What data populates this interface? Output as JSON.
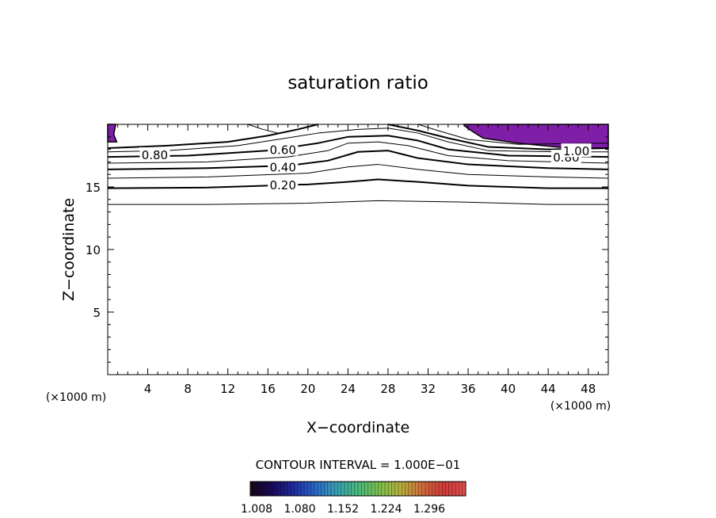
{
  "chart_data": {
    "type": "contour",
    "title": "saturation ratio",
    "xlabel": "X−coordinate",
    "ylabel": "Z−coordinate",
    "x_unit_left": "(×1000 m)",
    "x_unit_right": "(×1000 m)",
    "xlim": [
      0,
      50
    ],
    "ylim": [
      0,
      20
    ],
    "x_ticks": [
      4,
      8,
      12,
      16,
      20,
      24,
      28,
      32,
      36,
      40,
      44,
      48
    ],
    "y_ticks": [
      5,
      10,
      15
    ],
    "contour_interval_label": "CONTOUR INTERVAL = 1.000E−01",
    "contour_labels": [
      {
        "text": "0.20",
        "x": 17.5,
        "y": 15.2
      },
      {
        "text": "0.40",
        "x": 17.5,
        "y": 16.6
      },
      {
        "text": "0.60",
        "x": 17.5,
        "y": 18.0
      },
      {
        "text": "0.80",
        "x": 4.7,
        "y": 17.6
      },
      {
        "text": "0.80",
        "x": 45.8,
        "y": 17.4
      },
      {
        "text": "1.00",
        "x": 46.8,
        "y": 17.9
      }
    ],
    "contours": [
      {
        "level": 0.1,
        "bold": false,
        "points": [
          [
            0,
            13.6
          ],
          [
            10,
            13.6
          ],
          [
            20,
            13.7
          ],
          [
            27,
            13.9
          ],
          [
            35,
            13.8
          ],
          [
            44,
            13.6
          ],
          [
            50,
            13.6
          ]
        ]
      },
      {
        "level": 0.2,
        "bold": true,
        "points": [
          [
            0,
            14.9
          ],
          [
            10,
            14.95
          ],
          [
            20,
            15.2
          ],
          [
            24,
            15.4
          ],
          [
            27,
            15.6
          ],
          [
            31,
            15.4
          ],
          [
            36,
            15.1
          ],
          [
            44,
            14.9
          ],
          [
            50,
            14.9
          ]
        ]
      },
      {
        "level": 0.3,
        "bold": false,
        "points": [
          [
            0,
            15.7
          ],
          [
            10,
            15.8
          ],
          [
            20,
            16.1
          ],
          [
            24,
            16.6
          ],
          [
            27,
            16.8
          ],
          [
            31,
            16.4
          ],
          [
            36,
            16.0
          ],
          [
            44,
            15.8
          ],
          [
            50,
            15.7
          ]
        ]
      },
      {
        "level": 0.4,
        "bold": true,
        "points": [
          [
            0,
            16.4
          ],
          [
            10,
            16.5
          ],
          [
            18,
            16.7
          ],
          [
            22,
            17.1
          ],
          [
            25,
            17.8
          ],
          [
            28,
            17.9
          ],
          [
            31,
            17.3
          ],
          [
            36,
            16.8
          ],
          [
            44,
            16.5
          ],
          [
            50,
            16.4
          ]
        ]
      },
      {
        "level": 0.5,
        "bold": false,
        "points": [
          [
            0,
            16.9
          ],
          [
            10,
            17.0
          ],
          [
            18,
            17.4
          ],
          [
            22,
            17.9
          ],
          [
            24,
            18.5
          ],
          [
            27,
            18.6
          ],
          [
            30,
            18.3
          ],
          [
            34,
            17.5
          ],
          [
            40,
            17.1
          ],
          [
            50,
            16.9
          ]
        ]
      },
      {
        "level": 0.6,
        "bold": true,
        "points": [
          [
            0,
            17.4
          ],
          [
            8,
            17.5
          ],
          [
            16,
            17.9
          ],
          [
            21,
            18.5
          ],
          [
            24,
            19.0
          ],
          [
            28,
            19.1
          ],
          [
            31,
            18.7
          ],
          [
            34,
            18.0
          ],
          [
            40,
            17.5
          ],
          [
            50,
            17.4
          ]
        ]
      },
      {
        "level": 0.7,
        "bold": false,
        "points": [
          [
            0,
            17.8
          ],
          [
            6,
            17.9
          ],
          [
            13,
            18.3
          ],
          [
            17,
            18.8
          ],
          [
            21,
            19.3
          ],
          [
            25,
            19.6
          ],
          [
            28,
            19.7
          ],
          [
            31,
            19.3
          ],
          [
            34,
            18.6
          ],
          [
            38,
            17.9
          ],
          [
            45,
            17.8
          ],
          [
            50,
            17.8
          ]
        ]
      },
      {
        "level": 0.8,
        "bold": true,
        "points": [
          [
            0,
            18.1
          ],
          [
            6,
            18.3
          ],
          [
            12,
            18.6
          ],
          [
            16,
            19.1
          ],
          [
            19,
            19.6
          ],
          [
            21,
            20.0
          ]
        ]
      },
      {
        "level": 0.8,
        "bold": true,
        "points": [
          [
            28,
            20.0
          ],
          [
            31,
            19.5
          ],
          [
            34,
            18.9
          ],
          [
            38,
            18.2
          ],
          [
            44,
            18.0
          ],
          [
            50,
            18.1
          ]
        ]
      },
      {
        "level": 0.9,
        "bold": false,
        "points": [
          [
            14,
            20.0
          ],
          [
            15.5,
            19.6
          ],
          [
            17,
            19.3
          ]
        ]
      },
      {
        "level": 0.9,
        "bold": false,
        "points": [
          [
            31,
            20.0
          ],
          [
            33,
            19.5
          ],
          [
            36,
            18.8
          ],
          [
            41,
            18.4
          ],
          [
            50,
            18.5
          ]
        ]
      }
    ],
    "filled_regions": [
      {
        "label": "> 1.0",
        "color": "#7f1fa8",
        "points": [
          [
            0,
            20
          ],
          [
            0.8,
            20
          ],
          [
            0.6,
            19.2
          ],
          [
            0.9,
            18.6
          ],
          [
            0,
            18.6
          ]
        ]
      },
      {
        "label": "> 1.0",
        "color": "#7f1fa8",
        "points": [
          [
            35.6,
            20
          ],
          [
            50,
            20
          ],
          [
            50,
            18.1
          ],
          [
            46,
            18.1
          ],
          [
            41,
            18.5
          ],
          [
            37.5,
            18.9
          ],
          [
            36.3,
            19.5
          ],
          [
            35.6,
            19.9
          ]
        ]
      }
    ],
    "colorbar": {
      "tick_labels": [
        "1.008",
        "1.080",
        "1.152",
        "1.224",
        "1.296"
      ],
      "colors": [
        "#160616",
        "#1a0a5a",
        "#1e2aa0",
        "#2a66c8",
        "#3aa0b4",
        "#48b87c",
        "#7cc04c",
        "#b8b03c",
        "#d06a3a",
        "#d03a3a",
        "#e05050"
      ]
    }
  }
}
